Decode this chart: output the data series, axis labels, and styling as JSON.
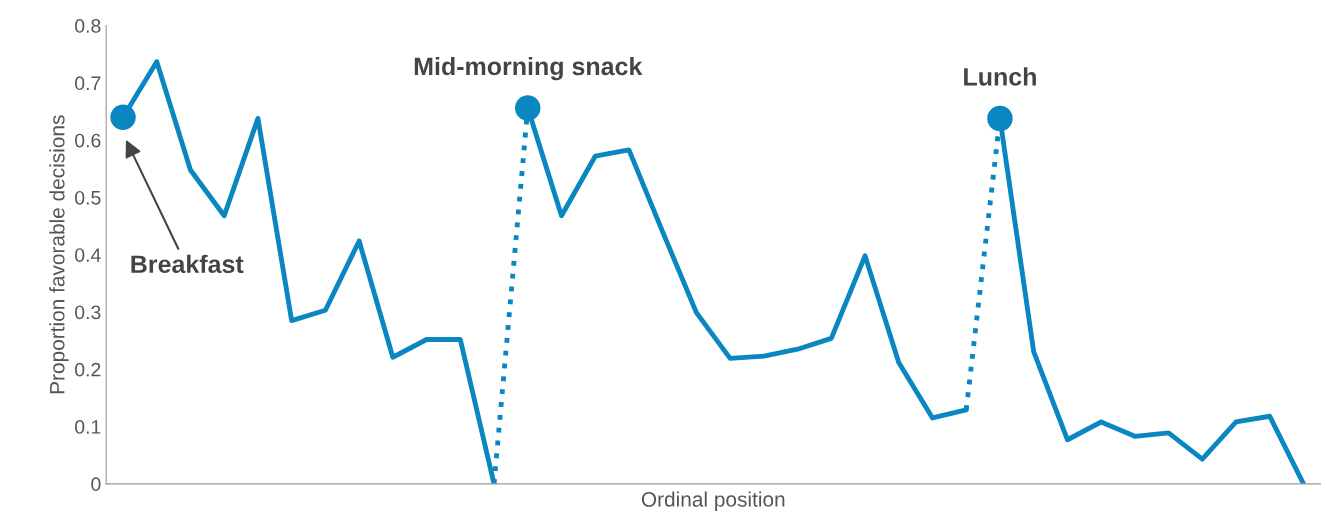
{
  "chart_data": {
    "type": "line",
    "xlabel": "Ordinal position",
    "ylabel": "Proportion favorable decisions",
    "categories": [
      null,
      null,
      null,
      null,
      null,
      null,
      null,
      null,
      null,
      null,
      null,
      null,
      null,
      null,
      null,
      null,
      null,
      null,
      null,
      null,
      null,
      null,
      null,
      null,
      null,
      null,
      null,
      null,
      null,
      null,
      null,
      null,
      null,
      null,
      null,
      null
    ],
    "ylim": [
      0,
      0.8
    ],
    "yticks": [
      0,
      0.1,
      0.2,
      0.3,
      0.4,
      0.5,
      0.6,
      0.7,
      0.8
    ],
    "grid": false,
    "legend": false,
    "series": [
      {
        "line_style": "solid",
        "color": "#0a87c0",
        "values": [
          0.64,
          0.737,
          0.548,
          0.468,
          0.638,
          0.285,
          0.303,
          0.424,
          0.221,
          0.252,
          0.252,
          0,
          null,
          null,
          null,
          null,
          null,
          null,
          null,
          null,
          null,
          null,
          null,
          null,
          null,
          null,
          null,
          null,
          null,
          null,
          null,
          null,
          null,
          null,
          null,
          null
        ]
      },
      {
        "line_style": "dotted",
        "color": "#0a87c0",
        "values": [
          null,
          null,
          null,
          null,
          null,
          null,
          null,
          null,
          null,
          null,
          null,
          0,
          0.656,
          null,
          null,
          null,
          null,
          null,
          null,
          null,
          null,
          null,
          null,
          null,
          null,
          null,
          null,
          null,
          null,
          null,
          null,
          null,
          null,
          null,
          null,
          null
        ]
      },
      {
        "line_style": "solid",
        "color": "#0a87c0",
        "values": [
          null,
          null,
          null,
          null,
          null,
          null,
          null,
          null,
          null,
          null,
          null,
          null,
          0.656,
          0.468,
          0.572,
          0.583,
          0.44,
          0.299,
          0.219,
          0.223,
          0.235,
          0.254,
          0.398,
          0.212,
          0.115,
          0.129,
          null,
          null,
          null,
          null,
          null,
          null,
          null,
          null,
          null,
          null
        ]
      },
      {
        "line_style": "dotted",
        "color": "#0a87c0",
        "values": [
          null,
          null,
          null,
          null,
          null,
          null,
          null,
          null,
          null,
          null,
          null,
          null,
          null,
          null,
          null,
          null,
          null,
          null,
          null,
          null,
          null,
          null,
          null,
          null,
          null,
          0.129,
          0.638,
          null,
          null,
          null,
          null,
          null,
          null,
          null,
          null,
          null
        ]
      },
      {
        "line_style": "solid",
        "color": "#0a87c0",
        "values": [
          null,
          null,
          null,
          null,
          null,
          null,
          null,
          null,
          null,
          null,
          null,
          null,
          null,
          null,
          null,
          null,
          null,
          null,
          null,
          null,
          null,
          null,
          null,
          null,
          null,
          null,
          0.638,
          0.231,
          0.077,
          0.108,
          0.083,
          0.089,
          0.043,
          0.108,
          0.118,
          0
        ]
      },
      {
        "type": "scatter",
        "marker": "circle",
        "color": "#0a87c0",
        "values": [
          0.64,
          null,
          null,
          null,
          null,
          null,
          null,
          null,
          null,
          null,
          null,
          null,
          0.656,
          null,
          null,
          null,
          null,
          null,
          null,
          null,
          null,
          null,
          null,
          null,
          null,
          null,
          0.638,
          null,
          null,
          null,
          null,
          null,
          null,
          null,
          null,
          null
        ]
      }
    ],
    "annotations": [
      "Breakfast",
      "Mid-morning snack",
      "Lunch"
    ]
  }
}
